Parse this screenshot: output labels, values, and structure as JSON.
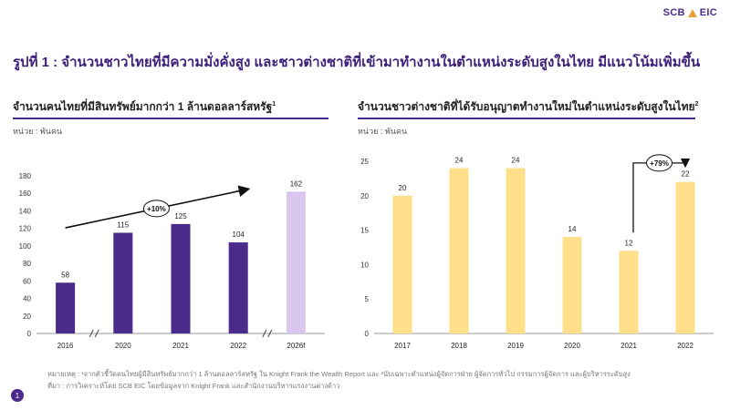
{
  "brand": {
    "name": "SCB",
    "suffix": "EIC"
  },
  "title": "รูปที่ 1 : จำนวนชาวไทยที่มีความมั่งคั่งสูง และชาวต่างชาติที่เข้ามาทำงานในตำแหน่งระดับสูงในไทย มีแนวโน้มเพิ่มขึ้น",
  "colors": {
    "purple": "#4a2a8a",
    "lavender": "#d9c7ef",
    "yellow": "#ffdf8a",
    "title": "#3d1f7a"
  },
  "chart_data": [
    {
      "type": "bar",
      "title": "จำนวนคนไทยที่มีสินทรัพย์มากกว่า 1 ล้านดอลลาร์สหรัฐ",
      "title_sup": "1",
      "unit": "หน่วย : พันคน",
      "categories": [
        "2016",
        "2020",
        "2021",
        "2022",
        "2026f"
      ],
      "values": [
        58,
        115,
        125,
        104,
        162
      ],
      "data_labels": [
        "58",
        "115",
        "125",
        "104",
        "162"
      ],
      "bar_colors": [
        "#4a2a8a",
        "#4a2a8a",
        "#4a2a8a",
        "#4a2a8a",
        "#d9c7ef"
      ],
      "ylim": [
        0,
        180
      ],
      "yticks": [
        0,
        20,
        40,
        60,
        80,
        100,
        120,
        140,
        160,
        180
      ],
      "ytick_labels": [
        "0",
        "20",
        "40",
        "60",
        "80",
        "100",
        "120",
        "140",
        "160",
        "180"
      ],
      "axis_breaks": [
        "2016-2020",
        "2022-2026f"
      ],
      "annotation": {
        "text": "+10%",
        "type": "trend-arrow"
      }
    },
    {
      "type": "bar",
      "title": "จำนวนชาวต่างชาติที่ได้รับอนุญาตทำงานใหม่ในตำแหน่งระดับสูงในไทย",
      "title_sup": "2",
      "unit": "หน่วย : พันคน",
      "categories": [
        "2017",
        "2018",
        "2019",
        "2020",
        "2021",
        "2022"
      ],
      "values": [
        20,
        24,
        24,
        14,
        12,
        22
      ],
      "data_labels": [
        "20",
        "24",
        "24",
        "14",
        "12",
        "22"
      ],
      "bar_color": "#ffdf8a",
      "ylim": [
        0,
        25
      ],
      "yticks": [
        0,
        5,
        10,
        15,
        20,
        25
      ],
      "ytick_labels": [
        "0",
        "5",
        "10",
        "15",
        "20",
        "25"
      ],
      "annotation": {
        "text": "+79%",
        "from": "2021",
        "to": "2022"
      }
    }
  ],
  "notes": {
    "note_line": "หมายเหตุ : ¹จากตัวชี้วัดคนไทยผู้มีสินทรัพย์มากกว่า 1 ล้านดอลลาร์สหรัฐ  ใน Knight Frank the Wealth Report และ ²นับเฉพาะตำแหน่งผู้จัดการฝ่าย ผู้จัดการทั่วไป กรรมการผู้จัดการ และผู้บริหารระดับสูง",
    "source_line": "ที่มา : การวิเคราะห์โดย SCB EIC โดยข้อมูลจาก Knight Frank และสำนักงานบริหารแรงงานต่างด้าว"
  },
  "page_number": "1"
}
